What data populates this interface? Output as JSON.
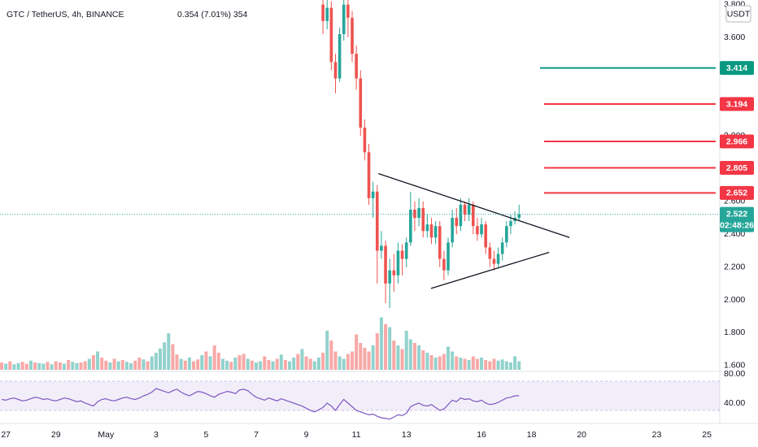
{
  "chart_data": {
    "type": "candlestick",
    "title": "GTC / TetherUS, 4h, BINANCE",
    "change": "0.354 (7.01%) 354",
    "currency": "USDT",
    "xlim": [
      -0.4,
      172.1
    ],
    "xticks": [
      {
        "value": 1,
        "label": "27"
      },
      {
        "value": 13,
        "label": "29"
      },
      {
        "value": 25,
        "label": "May"
      },
      {
        "value": 37,
        "label": "3"
      },
      {
        "value": 49,
        "label": "5"
      },
      {
        "value": 61,
        "label": "7"
      },
      {
        "value": 73,
        "label": "9"
      },
      {
        "value": 85,
        "label": "11"
      },
      {
        "value": 97,
        "label": "13"
      },
      {
        "value": 115,
        "label": "16"
      },
      {
        "value": 127,
        "label": "18"
      },
      {
        "value": 139,
        "label": "20"
      },
      {
        "value": 157,
        "label": "23"
      },
      {
        "value": 169,
        "label": "25"
      }
    ],
    "ylim": [
      1.574,
      3.828
    ],
    "yticks": [
      {
        "value": 1.6,
        "label": "1.600"
      },
      {
        "value": 1.8,
        "label": "1.800"
      },
      {
        "value": 2.0,
        "label": "2.000"
      },
      {
        "value": 2.2,
        "label": "2.200"
      },
      {
        "value": 2.4,
        "label": "2.400"
      },
      {
        "value": 2.6,
        "label": "2.600"
      },
      {
        "value": 2.8,
        "label": "2.800"
      },
      {
        "value": 3.0,
        "label": "3.000"
      },
      {
        "value": 3.2,
        "label": "3.200"
      },
      {
        "value": 3.4,
        "label": "3.400"
      },
      {
        "value": 3.6,
        "label": "3.600"
      },
      {
        "value": 3.8,
        "label": "3.800"
      }
    ],
    "candles": {
      "up_color": "#26a69a",
      "down_color": "#ef5350",
      "x": [
        77,
        78,
        79,
        80,
        81,
        82,
        83,
        84,
        85,
        86,
        87,
        88,
        89,
        90,
        91,
        92,
        93,
        94,
        95,
        96,
        97,
        98,
        99,
        100,
        101,
        102,
        103,
        104,
        105,
        106,
        107,
        108,
        109,
        110,
        111,
        112,
        113,
        114,
        115,
        116,
        117,
        118,
        119,
        120,
        121,
        122,
        123,
        124
      ],
      "open": [
        3.8,
        3.7,
        3.78,
        3.45,
        3.35,
        3.62,
        3.8,
        3.72,
        3.5,
        3.35,
        3.05,
        2.9,
        2.62,
        2.66,
        2.3,
        2.33,
        2.1,
        2.18,
        2.15,
        2.3,
        2.25,
        2.35,
        2.55,
        2.5,
        2.56,
        2.42,
        2.46,
        2.38,
        2.45,
        2.25,
        2.18,
        2.35,
        2.5,
        2.45,
        2.58,
        2.52,
        2.58,
        2.45,
        2.4,
        2.46,
        2.32,
        2.25,
        2.22,
        2.28,
        2.35,
        2.45,
        2.48,
        2.5
      ],
      "high": [
        3.85,
        3.84,
        3.82,
        3.5,
        3.66,
        3.85,
        3.85,
        3.76,
        3.55,
        3.4,
        3.1,
        2.95,
        2.72,
        2.7,
        2.42,
        2.36,
        2.25,
        2.28,
        2.35,
        2.34,
        2.38,
        2.66,
        2.6,
        2.62,
        2.6,
        2.52,
        2.5,
        2.48,
        2.48,
        2.3,
        2.38,
        2.55,
        2.56,
        2.62,
        2.6,
        2.62,
        2.6,
        2.5,
        2.5,
        2.48,
        2.35,
        2.3,
        2.32,
        2.38,
        2.48,
        2.52,
        2.54,
        2.58
      ],
      "low": [
        3.62,
        3.65,
        3.4,
        3.26,
        3.33,
        3.58,
        3.6,
        3.45,
        3.28,
        3.0,
        2.85,
        2.58,
        2.5,
        2.1,
        2.25,
        1.98,
        1.95,
        2.05,
        2.1,
        2.15,
        2.2,
        2.33,
        2.42,
        2.45,
        2.38,
        2.38,
        2.34,
        2.34,
        2.2,
        2.12,
        2.15,
        2.32,
        2.4,
        2.42,
        2.48,
        2.48,
        2.4,
        2.36,
        2.38,
        2.28,
        2.2,
        2.18,
        2.2,
        2.24,
        2.32,
        2.4,
        2.46,
        2.48
      ],
      "close": [
        3.7,
        3.78,
        3.45,
        3.35,
        3.62,
        3.8,
        3.72,
        3.5,
        3.35,
        3.05,
        2.9,
        2.62,
        2.66,
        2.3,
        2.33,
        2.1,
        2.18,
        2.15,
        2.3,
        2.25,
        2.35,
        2.55,
        2.5,
        2.56,
        2.42,
        2.46,
        2.38,
        2.45,
        2.25,
        2.18,
        2.35,
        2.5,
        2.45,
        2.58,
        2.52,
        2.58,
        2.45,
        2.4,
        2.46,
        2.32,
        2.25,
        2.22,
        2.28,
        2.35,
        2.45,
        2.48,
        2.5,
        2.522
      ]
    },
    "volume": {
      "up_color": "rgba(38,166,154,0.5)",
      "down_color": "rgba(239,83,80,0.5)",
      "values": [
        12,
        10,
        14,
        9,
        11,
        13,
        10,
        15,
        12,
        11,
        10,
        13,
        9,
        14,
        12,
        10,
        16,
        13,
        11,
        12,
        14,
        18,
        24,
        30,
        20,
        15,
        12,
        18,
        14,
        16,
        13,
        11,
        15,
        20,
        17,
        14,
        22,
        28,
        35,
        45,
        60,
        42,
        25,
        18,
        15,
        20,
        14,
        17,
        24,
        30,
        22,
        40,
        28,
        18,
        15,
        13,
        20,
        24,
        26,
        18,
        15,
        12,
        14,
        22,
        16,
        14,
        18,
        25,
        16,
        14,
        20,
        26,
        34,
        22,
        18,
        14,
        20,
        28,
        64,
        48,
        30,
        22,
        18,
        26,
        30,
        58,
        44,
        36,
        30,
        40,
        60,
        86,
        75,
        70,
        48,
        40,
        34,
        64,
        50,
        44,
        40,
        32,
        28,
        24,
        20,
        22,
        26,
        38,
        30,
        22,
        20,
        18,
        16,
        22,
        18,
        20,
        16,
        14,
        18,
        15,
        17,
        14,
        12,
        22,
        14
      ],
      "up": [
        0,
        1,
        0,
        1,
        1,
        0,
        0,
        1,
        0,
        1,
        1,
        0,
        1,
        0,
        0,
        1,
        0,
        1,
        1,
        0,
        0,
        1,
        0,
        1,
        0,
        0,
        1,
        0,
        1,
        0,
        1,
        1,
        0,
        0,
        1,
        0,
        1,
        1,
        1,
        1,
        1,
        0,
        0,
        1,
        0,
        1,
        0,
        0,
        1,
        0,
        1,
        0,
        0,
        1,
        1,
        0,
        1,
        0,
        0,
        1,
        0,
        1,
        1,
        0,
        0,
        1,
        0,
        1,
        0,
        1,
        1,
        0,
        1,
        0,
        0,
        1,
        1,
        0,
        1,
        0,
        0,
        1,
        1,
        0,
        0,
        0,
        0,
        0,
        0,
        1,
        0,
        1,
        0,
        1,
        0,
        1,
        0,
        1,
        1,
        0,
        1,
        0,
        1,
        0,
        1,
        0,
        0,
        1,
        1,
        0,
        1,
        0,
        1,
        0,
        0,
        1,
        0,
        0,
        0,
        1,
        1,
        1,
        1,
        1,
        1
      ]
    },
    "last_price": {
      "value": 2.522,
      "countdown": "02:48:26",
      "color": "#26a69a"
    },
    "levels": [
      {
        "value": 3.414,
        "color": "#089981"
      },
      {
        "value": 3.194,
        "color": "#f23645"
      },
      {
        "value": 2.966,
        "color": "#f23645"
      },
      {
        "value": 2.805,
        "color": "#f23645"
      },
      {
        "value": 2.652,
        "color": "#f23645"
      }
    ],
    "trendlines": [
      {
        "x": [
          90.3,
          136.1
        ],
        "y": [
          2.77,
          2.38
        ]
      },
      {
        "x": [
          102.9,
          131.2
        ],
        "y": [
          2.07,
          2.29
        ]
      }
    ],
    "rsi": {
      "color": "#7e57c2",
      "ylim": [
        13.3,
        83.3
      ],
      "yticks": [
        {
          "value": 80,
          "label": "80.00"
        },
        {
          "value": 40,
          "label": "40.00"
        }
      ],
      "band": [
        70,
        30
      ],
      "values": [
        45,
        44,
        46,
        47,
        45,
        43,
        44,
        46,
        48,
        47,
        45,
        46,
        44,
        43,
        45,
        47,
        46,
        44,
        42,
        43,
        40,
        38,
        36,
        42,
        45,
        46,
        44,
        43,
        45,
        47,
        48,
        46,
        45,
        47,
        50,
        52,
        55,
        60,
        58,
        56,
        54,
        57,
        59,
        55,
        52,
        50,
        53,
        56,
        55,
        53,
        50,
        48,
        52,
        54,
        56,
        55,
        53,
        58,
        59,
        57,
        52,
        48,
        46,
        44,
        47,
        45,
        43,
        46,
        44,
        42,
        40,
        38,
        36,
        33,
        30,
        28,
        31,
        34,
        40,
        36,
        30,
        38,
        45,
        40,
        35,
        30,
        28,
        26,
        24,
        25,
        22,
        20,
        19,
        18,
        21,
        24,
        23,
        26,
        35,
        38,
        40,
        37,
        36,
        38,
        34,
        30,
        32,
        38,
        44,
        42,
        47,
        45,
        46,
        43,
        42,
        44,
        40,
        38,
        39,
        41,
        44,
        47,
        48,
        50,
        50
      ]
    }
  }
}
